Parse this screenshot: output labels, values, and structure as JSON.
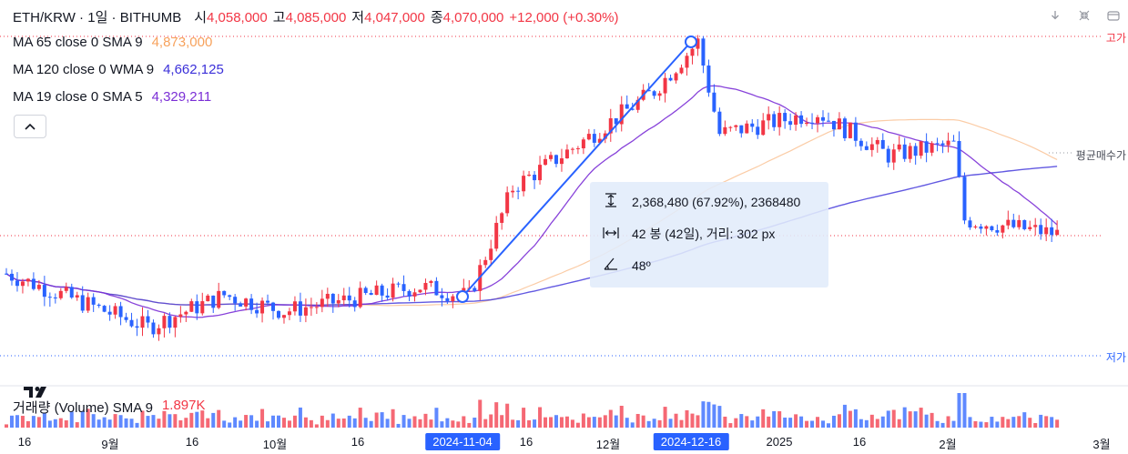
{
  "header": {
    "symbol": "ETH/KRW · 1일 · BITHUMB",
    "open_label": "시",
    "open": "4,058,000",
    "high_label": "고",
    "high": "4,085,000",
    "low_label": "저",
    "low": "4,047,000",
    "close_label": "종",
    "close": "4,070,000",
    "change": "+12,000 (+0.30%)"
  },
  "indicators": [
    {
      "name": "MA 65 close 0 SMA 9",
      "value": "4,873,000",
      "color": "#f7a25c"
    },
    {
      "name": "MA 120 close 0 WMA 9",
      "value": "4,662,125",
      "color": "#3b30d9"
    },
    {
      "name": "MA 19 close 0 SMA 5",
      "value": "4,329,211",
      "color": "#7b2fd6"
    }
  ],
  "collapse_icon": "chevron-up-icon",
  "toolbar_icons": [
    "download-icon",
    "fullscreen-collapse-icon",
    "restore-window-icon"
  ],
  "right_labels": {
    "high": "고가",
    "avg_buy": "평균매수가",
    "low": "저가"
  },
  "volume": {
    "name": "거래량 (Volume) SMA 9",
    "value": "1.897K"
  },
  "measure": {
    "price_text": "2,368,480 (67.92%), 2368480",
    "bars_text": "42 봉 (42일), 거리: 302 px",
    "angle_text": "48º"
  },
  "x_labels": [
    "16",
    "9월",
    "16",
    "10월",
    "16",
    "2024-11-04",
    "16",
    "12월",
    "2024-12-16",
    "2025",
    "16",
    "2월",
    "3월"
  ],
  "colors": {
    "up": "#f23645",
    "down": "#2962ff",
    "measure_line": "#2962ff",
    "tip_bg": "#e1ecfa"
  },
  "chart_data": {
    "type": "candlestick",
    "title": "ETH/KRW · 1일 · BITHUMB",
    "x_start": "2024-08-11",
    "x_end": "2025-02-20",
    "points_approx": [
      {
        "date": "2024-08-11",
        "close": 3700000
      },
      {
        "date": "2024-09-06",
        "close": 3200000
      },
      {
        "date": "2024-09-20",
        "close": 3500000
      },
      {
        "date": "2024-10-01",
        "close": 3350000
      },
      {
        "date": "2024-10-26",
        "close": 3580000
      },
      {
        "date": "2024-11-04",
        "close": 3486000
      },
      {
        "date": "2024-11-12",
        "close": 4500000
      },
      {
        "date": "2024-11-24",
        "close": 4900000
      },
      {
        "date": "2024-12-08",
        "close": 5400000
      },
      {
        "date": "2024-12-16",
        "close": 5856000
      },
      {
        "date": "2024-12-20",
        "close": 5000000
      },
      {
        "date": "2025-01-07",
        "close": 5200000
      },
      {
        "date": "2025-01-20",
        "close": 4800000
      },
      {
        "date": "2025-02-01",
        "close": 4900000
      },
      {
        "date": "2025-02-03",
        "close": 4200000
      },
      {
        "date": "2025-02-20",
        "close": 4070000
      }
    ],
    "measure_change": "2,368,480 (67.92%)"
  }
}
